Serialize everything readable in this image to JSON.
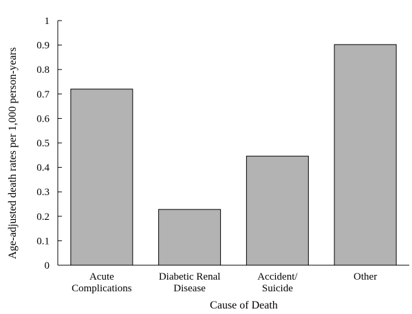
{
  "chart_data": {
    "type": "bar",
    "categories": [
      [
        "Acute",
        "Complications"
      ],
      [
        "Diabetic Renal",
        "Disease"
      ],
      [
        "Accident/",
        "Suicide"
      ],
      [
        "Other"
      ]
    ],
    "values": [
      0.72,
      0.228,
      0.446,
      0.902
    ],
    "xlabel": "Cause of Death",
    "ylabel": "Age-adjusted death rates per 1,000 person-years",
    "ylim": [
      0,
      1
    ],
    "yticks": [
      "0",
      "0.1",
      "0.2",
      "0.3",
      "0.4",
      "0.5",
      "0.6",
      "0.7",
      "0.8",
      "0.9",
      "1"
    ],
    "grid": false,
    "bar_color": "#b3b3b3"
  }
}
